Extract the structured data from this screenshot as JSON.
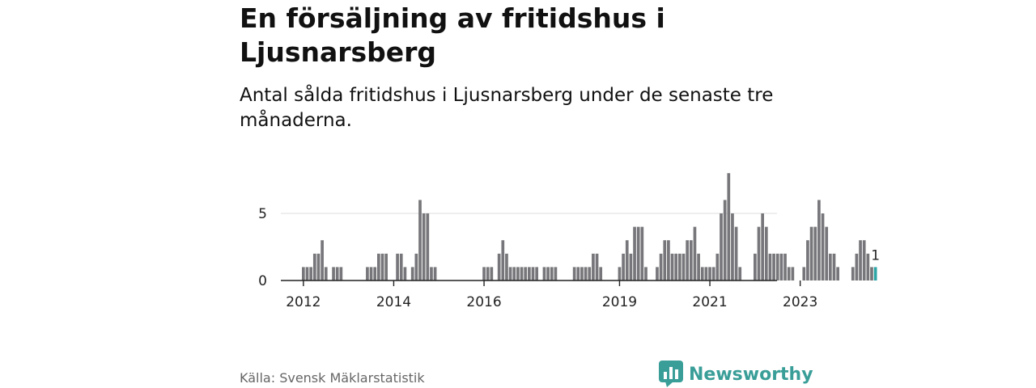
{
  "header": {
    "title": "En försäljning av fritidshus i Ljusnarsberg",
    "subtitle": "Antal sålda fritidshus i Ljusnarsberg under de senaste tre månaderna."
  },
  "footer": {
    "source": "Källa: Svensk Mäklarstatistik",
    "logo_text": "Newsworthy"
  },
  "colors": {
    "bar": "#77777b",
    "highlight": "#2fa6a6",
    "axis": "#222222",
    "grid": "#dddddd",
    "brand": "#3a9e98"
  },
  "chart_data": {
    "type": "bar",
    "series": [
      {
        "values": [
          1,
          1,
          1,
          2,
          2,
          3,
          1,
          0,
          1,
          1,
          1,
          0,
          0,
          0,
          0,
          0,
          0,
          1,
          1,
          1,
          2,
          2,
          2,
          0,
          0,
          2,
          2,
          1,
          0,
          1,
          2,
          6,
          5,
          5,
          1,
          1,
          0,
          0,
          0,
          0,
          0,
          0,
          0,
          0,
          0,
          0,
          0,
          0,
          1,
          1,
          1,
          0,
          2,
          3,
          2,
          1,
          1,
          1,
          1,
          1,
          1,
          1,
          1,
          0,
          1,
          1,
          1,
          1,
          0,
          0,
          0,
          0,
          1,
          1,
          1,
          1,
          1,
          2,
          2,
          1,
          0,
          0,
          0,
          0,
          1,
          2,
          3,
          2,
          4,
          4,
          4,
          1,
          0,
          0,
          1,
          2,
          3,
          3,
          2,
          2,
          2,
          2,
          3,
          3,
          4,
          2,
          1,
          1,
          1,
          1,
          2,
          5,
          6,
          8,
          5,
          4,
          1,
          0,
          0,
          0,
          2,
          4,
          5,
          4,
          2,
          2,
          2,
          2,
          2,
          1,
          1,
          0,
          0,
          1,
          3,
          4,
          4,
          6,
          5,
          4,
          2,
          2,
          1,
          0,
          0,
          0,
          1,
          2,
          3,
          3,
          2,
          1,
          1
        ]
      }
    ],
    "x_start": "2012-01",
    "x_end": "2024-09",
    "x_ticks": [
      "2012",
      "2014",
      "2016",
      "2019",
      "2021",
      "2023"
    ],
    "y_ticks": [
      "0",
      "5"
    ],
    "ylim": [
      0,
      8
    ],
    "last_value_label": "1",
    "highlight_last": true,
    "grid": "horizontal"
  }
}
